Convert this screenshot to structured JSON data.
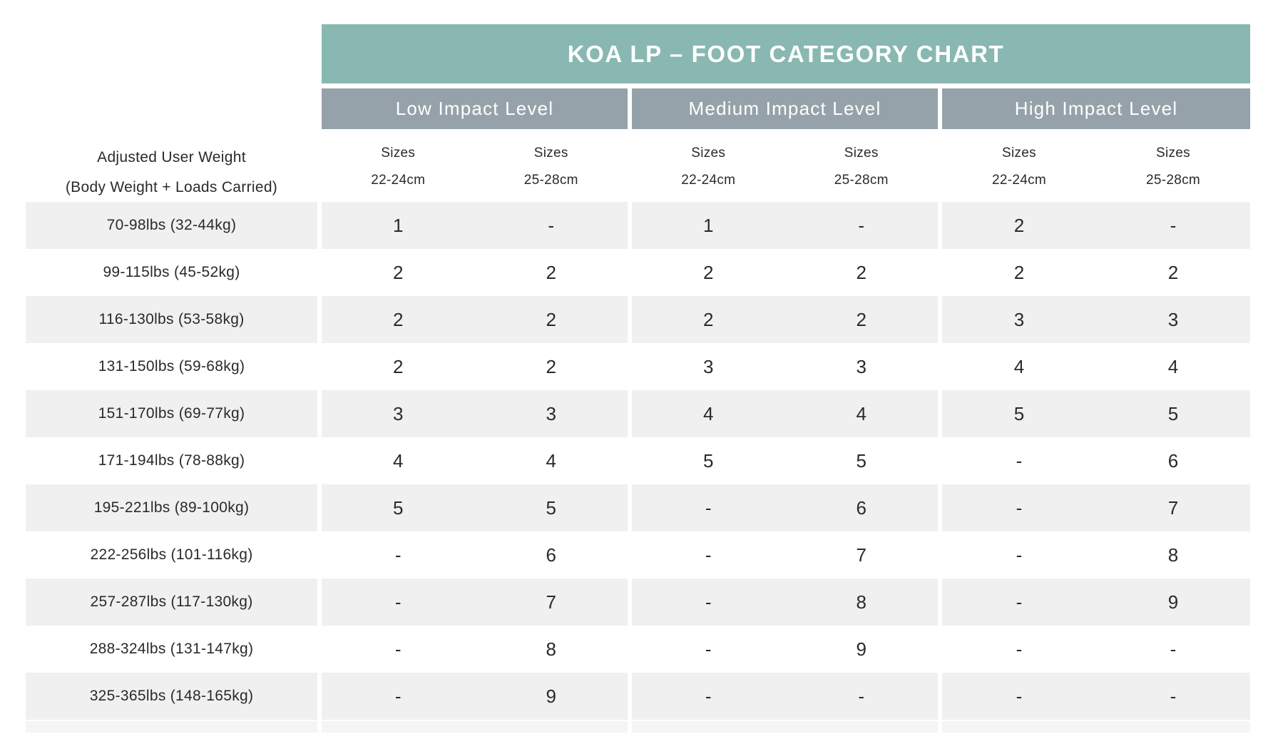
{
  "title_bar": {
    "title": "KOA LP – FOOT CATEGORY CHART"
  },
  "row_header": {
    "line1": "Adjusted User Weight",
    "line2": "(Body Weight + Loads Carried)"
  },
  "table": {
    "sizes_label": "Sizes",
    "sub_columns": [
      "22-24cm",
      "25-28cm"
    ]
  },
  "colors": {
    "header_green": "#88B8B1",
    "header_gray": "#95A2A9",
    "row_stripe": "#F0F0F1",
    "cutoff_stripe": "#F5F5F6",
    "text_dark": "#2B2A2A",
    "header_text": "#FFFFFF"
  },
  "chart_data": {
    "type": "table",
    "title": "KOA LP – FOOT CATEGORY CHART",
    "row_label_header": "Adjusted User Weight (Body Weight + Loads Carried)",
    "column_groups": [
      "Low Impact Level",
      "Medium Impact Level",
      "High Impact Level"
    ],
    "columns": [
      "Low Impact Level / Sizes 22-24cm",
      "Low Impact Level / Sizes 25-28cm",
      "Medium Impact Level / Sizes 22-24cm",
      "Medium Impact Level / Sizes 25-28cm",
      "High Impact Level / Sizes 22-24cm",
      "High Impact Level / Sizes 25-28cm"
    ],
    "rows": [
      {
        "weight": "70-98lbs (32-44kg)",
        "values": [
          "1",
          "-",
          "1",
          "-",
          "2",
          "-"
        ]
      },
      {
        "weight": "99-115lbs (45-52kg)",
        "values": [
          "2",
          "2",
          "2",
          "2",
          "2",
          "2"
        ]
      },
      {
        "weight": "116-130lbs (53-58kg)",
        "values": [
          "2",
          "2",
          "2",
          "2",
          "3",
          "3"
        ]
      },
      {
        "weight": "131-150lbs (59-68kg)",
        "values": [
          "2",
          "2",
          "3",
          "3",
          "4",
          "4"
        ]
      },
      {
        "weight": "151-170lbs (69-77kg)",
        "values": [
          "3",
          "3",
          "4",
          "4",
          "5",
          "5"
        ]
      },
      {
        "weight": "171-194lbs (78-88kg)",
        "values": [
          "4",
          "4",
          "5",
          "5",
          "-",
          "6"
        ]
      },
      {
        "weight": "195-221lbs (89-100kg)",
        "values": [
          "5",
          "5",
          "-",
          "6",
          "-",
          "7"
        ]
      },
      {
        "weight": "222-256lbs (101-116kg)",
        "values": [
          "-",
          "6",
          "-",
          "7",
          "-",
          "8"
        ]
      },
      {
        "weight": "257-287lbs (117-130kg)",
        "values": [
          "-",
          "7",
          "-",
          "8",
          "-",
          "9"
        ]
      },
      {
        "weight": "288-324lbs (131-147kg)",
        "values": [
          "-",
          "8",
          "-",
          "9",
          "-",
          "-"
        ]
      },
      {
        "weight": "325-365lbs (148-165kg)",
        "values": [
          "-",
          "9",
          "-",
          "-",
          "-",
          "-"
        ]
      }
    ]
  }
}
